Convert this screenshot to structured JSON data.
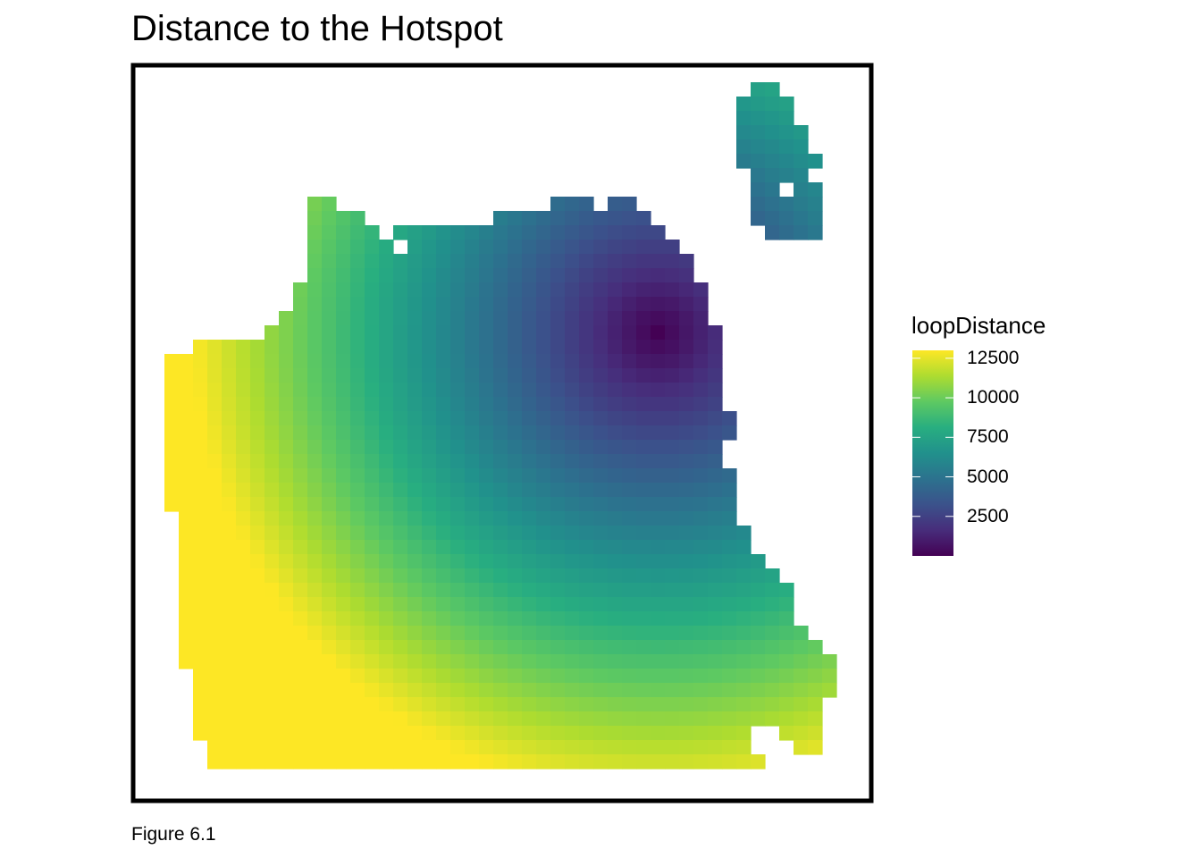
{
  "title": "Distance to the Hotspot",
  "caption": "Figure 6.1",
  "chart_data": {
    "type": "heatmap",
    "title": "Distance to the Hotspot",
    "fill_variable": "loopDistance",
    "colormap": "viridis",
    "fill_range": [
      0,
      13000
    ],
    "hotspot_cell": {
      "col": 36,
      "row": 18
    },
    "legend": {
      "title": "loopDistance",
      "position": "right",
      "breaks": [
        12500,
        10000,
        7500,
        5000,
        2500
      ],
      "labels": [
        "12500",
        "10000",
        "7500",
        "5000",
        "2500"
      ]
    },
    "grid": false,
    "grid_cell_size_units": 400,
    "mask_rows": [
      {
        "row": 1,
        "spans": [
          [
            43,
            44
          ]
        ]
      },
      {
        "row": 2,
        "spans": [
          [
            42,
            45
          ]
        ]
      },
      {
        "row": 3,
        "spans": [
          [
            42,
            45
          ]
        ]
      },
      {
        "row": 4,
        "spans": [
          [
            42,
            46
          ]
        ]
      },
      {
        "row": 5,
        "spans": [
          [
            42,
            46
          ]
        ]
      },
      {
        "row": 6,
        "spans": [
          [
            42,
            47
          ]
        ]
      },
      {
        "row": 7,
        "spans": [
          [
            43,
            46
          ]
        ]
      },
      {
        "row": 8,
        "spans": [
          [
            43,
            44
          ],
          [
            46,
            47
          ]
        ]
      },
      {
        "row": 9,
        "spans": [
          [
            12,
            13
          ],
          [
            29,
            31
          ],
          [
            33,
            34
          ],
          [
            43,
            47
          ]
        ]
      },
      {
        "row": 10,
        "spans": [
          [
            12,
            15
          ],
          [
            25,
            35
          ],
          [
            43,
            47
          ]
        ]
      },
      {
        "row": 11,
        "spans": [
          [
            12,
            16
          ],
          [
            18,
            36
          ],
          [
            44,
            47
          ]
        ]
      },
      {
        "row": 12,
        "spans": [
          [
            12,
            17
          ],
          [
            19,
            37
          ]
        ]
      },
      {
        "row": 13,
        "spans": [
          [
            12,
            38
          ]
        ]
      },
      {
        "row": 14,
        "spans": [
          [
            12,
            38
          ]
        ]
      },
      {
        "row": 15,
        "spans": [
          [
            11,
            39
          ]
        ]
      },
      {
        "row": 16,
        "spans": [
          [
            11,
            39
          ]
        ]
      },
      {
        "row": 17,
        "spans": [
          [
            10,
            39
          ]
        ]
      },
      {
        "row": 18,
        "spans": [
          [
            9,
            40
          ]
        ]
      },
      {
        "row": 19,
        "spans": [
          [
            4,
            40
          ]
        ]
      },
      {
        "row": 20,
        "spans": [
          [
            2,
            40
          ]
        ]
      },
      {
        "row": 21,
        "spans": [
          [
            2,
            40
          ]
        ]
      },
      {
        "row": 22,
        "spans": [
          [
            2,
            40
          ]
        ]
      },
      {
        "row": 23,
        "spans": [
          [
            2,
            40
          ]
        ]
      },
      {
        "row": 24,
        "spans": [
          [
            2,
            41
          ]
        ]
      },
      {
        "row": 25,
        "spans": [
          [
            2,
            41
          ]
        ]
      },
      {
        "row": 26,
        "spans": [
          [
            2,
            40
          ]
        ]
      },
      {
        "row": 27,
        "spans": [
          [
            2,
            40
          ]
        ]
      },
      {
        "row": 28,
        "spans": [
          [
            2,
            41
          ]
        ]
      },
      {
        "row": 29,
        "spans": [
          [
            2,
            41
          ]
        ]
      },
      {
        "row": 30,
        "spans": [
          [
            2,
            41
          ]
        ]
      },
      {
        "row": 31,
        "spans": [
          [
            3,
            41
          ]
        ]
      },
      {
        "row": 32,
        "spans": [
          [
            3,
            42
          ]
        ]
      },
      {
        "row": 33,
        "spans": [
          [
            3,
            42
          ]
        ]
      },
      {
        "row": 34,
        "spans": [
          [
            3,
            43
          ]
        ]
      },
      {
        "row": 35,
        "spans": [
          [
            3,
            44
          ]
        ]
      },
      {
        "row": 36,
        "spans": [
          [
            3,
            45
          ]
        ]
      },
      {
        "row": 37,
        "spans": [
          [
            3,
            45
          ]
        ]
      },
      {
        "row": 38,
        "spans": [
          [
            3,
            45
          ]
        ]
      },
      {
        "row": 39,
        "spans": [
          [
            3,
            46
          ]
        ]
      },
      {
        "row": 40,
        "spans": [
          [
            3,
            47
          ]
        ]
      },
      {
        "row": 41,
        "spans": [
          [
            3,
            48
          ]
        ]
      },
      {
        "row": 42,
        "spans": [
          [
            4,
            48
          ]
        ]
      },
      {
        "row": 43,
        "spans": [
          [
            4,
            48
          ]
        ]
      },
      {
        "row": 44,
        "spans": [
          [
            4,
            47
          ]
        ]
      },
      {
        "row": 45,
        "spans": [
          [
            4,
            47
          ]
        ]
      },
      {
        "row": 46,
        "spans": [
          [
            4,
            42
          ],
          [
            45,
            47
          ]
        ]
      },
      {
        "row": 47,
        "spans": [
          [
            5,
            42
          ],
          [
            46,
            47
          ]
        ]
      },
      {
        "row": 48,
        "spans": [
          [
            5,
            43
          ]
        ]
      }
    ]
  }
}
